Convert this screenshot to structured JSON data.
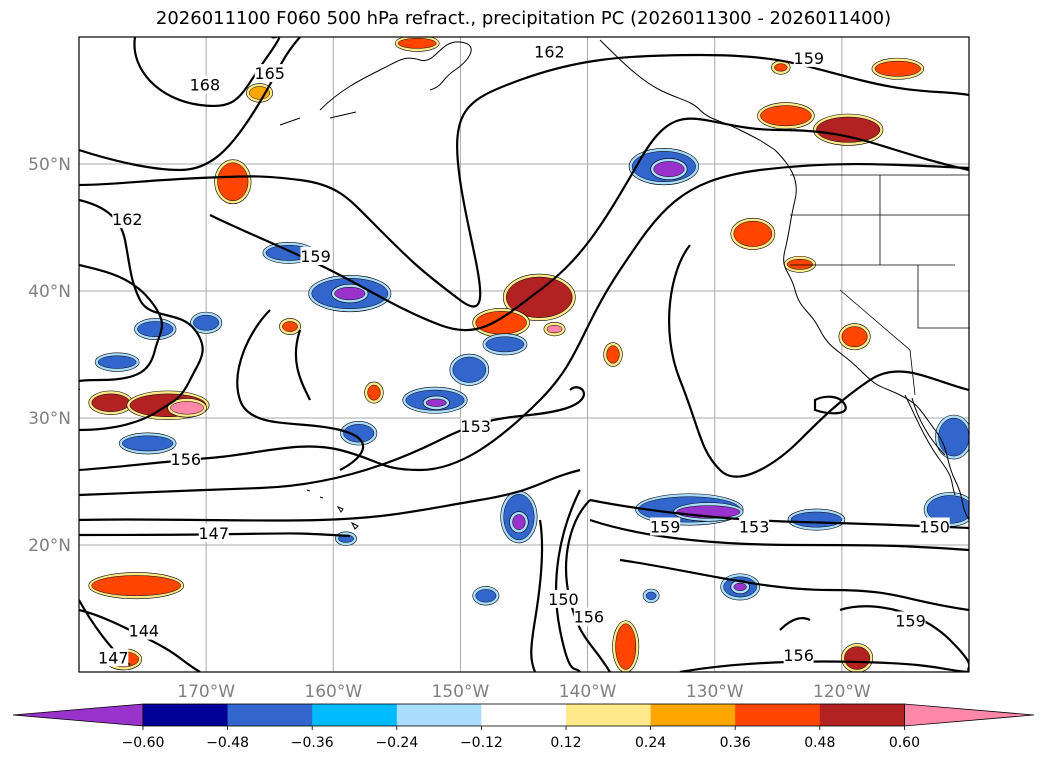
{
  "chart_data": {
    "type": "map-contour",
    "title": "2026011100 F060 500 hPa refract., precipitation PC (2026011300 - 2026011400)",
    "lon_range": [
      -180,
      -110
    ],
    "lat_range": [
      10,
      60
    ],
    "lon_ticks": [
      {
        "value": -170,
        "label": "170°W"
      },
      {
        "value": -160,
        "label": "160°W"
      },
      {
        "value": -150,
        "label": "150°W"
      },
      {
        "value": -140,
        "label": "140°W"
      },
      {
        "value": -130,
        "label": "130°W"
      },
      {
        "value": -120,
        "label": "120°W"
      }
    ],
    "lat_ticks": [
      {
        "value": 20,
        "label": "20°N"
      },
      {
        "value": 30,
        "label": "30°N"
      },
      {
        "value": 40,
        "label": "40°N"
      },
      {
        "value": 50,
        "label": "50°N"
      }
    ],
    "grid": true,
    "colorbar": {
      "orientation": "horizontal",
      "extend": "both",
      "levels": [
        -0.6,
        -0.48,
        -0.36,
        -0.24,
        -0.12,
        0.12,
        0.24,
        0.36,
        0.48,
        0.6
      ],
      "tick_labels": [
        "−0.60",
        "−0.48",
        "−0.36",
        "−0.24",
        "−0.12",
        "0.12",
        "0.24",
        "0.36",
        "0.48",
        "0.60"
      ],
      "colors": [
        "#9933cc",
        "#000099",
        "#3366cc",
        "#00bbff",
        "#aaddff",
        "#ffffff",
        "#ffe98a",
        "#ffa500",
        "#ff4500",
        "#b22222",
        "#ff88aa"
      ]
    },
    "contour_labels": [
      {
        "text": "168",
        "lon": -170.1,
        "lat": 56.1
      },
      {
        "text": "165",
        "lon": -165.0,
        "lat": 57.0
      },
      {
        "text": "162",
        "lon": -143.0,
        "lat": 58.7
      },
      {
        "text": "159",
        "lon": -122.6,
        "lat": 58.2
      },
      {
        "text": "162",
        "lon": -176.2,
        "lat": 45.5
      },
      {
        "text": "159",
        "lon": -161.4,
        "lat": 42.6
      },
      {
        "text": "153",
        "lon": -148.8,
        "lat": 29.2
      },
      {
        "text": "156",
        "lon": -171.6,
        "lat": 26.6
      },
      {
        "text": "147",
        "lon": -169.4,
        "lat": 20.8
      },
      {
        "text": "159",
        "lon": -133.9,
        "lat": 21.3
      },
      {
        "text": "153",
        "lon": -126.9,
        "lat": 21.3
      },
      {
        "text": "150",
        "lon": -112.7,
        "lat": 21.3
      },
      {
        "text": "150",
        "lon": -141.9,
        "lat": 15.6
      },
      {
        "text": "156",
        "lon": -139.9,
        "lat": 14.2
      },
      {
        "text": "159",
        "lon": -114.6,
        "lat": 13.9
      },
      {
        "text": "144",
        "lon": -174.9,
        "lat": 13.1
      },
      {
        "text": "147",
        "lon": -177.3,
        "lat": 11.0
      },
      {
        "text": "156",
        "lon": -123.4,
        "lat": 11.2
      }
    ],
    "precip_blobs": [
      {
        "lon": -177.5,
        "lat": 31.2,
        "rx": 1.5,
        "ry": 0.7,
        "level": 4
      },
      {
        "lon": -173.0,
        "lat": 31.0,
        "rx": 3.0,
        "ry": 0.9,
        "level": 4
      },
      {
        "lon": -171.5,
        "lat": 30.8,
        "rx": 1.3,
        "ry": 0.5,
        "level": 5
      },
      {
        "lon": -174.6,
        "lat": 28.0,
        "rx": 2.0,
        "ry": 0.6,
        "level": -3
      },
      {
        "lon": -175.5,
        "lat": 16.8,
        "rx": 3.5,
        "ry": 0.8,
        "level": 3
      },
      {
        "lon": -176.5,
        "lat": 11.0,
        "rx": 1.2,
        "ry": 0.6,
        "level": 3
      },
      {
        "lon": -167.9,
        "lat": 48.6,
        "rx": 1.2,
        "ry": 1.5,
        "level": 3
      },
      {
        "lon": -165.8,
        "lat": 55.6,
        "rx": 0.8,
        "ry": 0.5,
        "level": 2
      },
      {
        "lon": -158.7,
        "lat": 39.8,
        "rx": 3.0,
        "ry": 1.2,
        "level": -3
      },
      {
        "lon": -158.7,
        "lat": 39.8,
        "rx": 1.2,
        "ry": 0.5,
        "level": -5
      },
      {
        "lon": -163.5,
        "lat": 43.0,
        "rx": 1.8,
        "ry": 0.6,
        "level": -3
      },
      {
        "lon": -152.0,
        "lat": 31.4,
        "rx": 2.3,
        "ry": 0.8,
        "level": -3
      },
      {
        "lon": -151.9,
        "lat": 31.2,
        "rx": 0.8,
        "ry": 0.3,
        "level": -5
      },
      {
        "lon": -177.0,
        "lat": 34.4,
        "rx": 1.5,
        "ry": 0.5,
        "level": -3
      },
      {
        "lon": -174.0,
        "lat": 37.0,
        "rx": 1.4,
        "ry": 0.6,
        "level": -3
      },
      {
        "lon": -170.0,
        "lat": 37.5,
        "rx": 1.0,
        "ry": 0.6,
        "level": -3
      },
      {
        "lon": -158.0,
        "lat": 28.8,
        "rx": 1.2,
        "ry": 0.7,
        "level": -3
      },
      {
        "lon": -156.8,
        "lat": 32.0,
        "rx": 0.5,
        "ry": 0.6,
        "level": 3
      },
      {
        "lon": -163.4,
        "lat": 37.2,
        "rx": 0.6,
        "ry": 0.4,
        "level": 3
      },
      {
        "lon": -143.8,
        "lat": 39.5,
        "rx": 2.6,
        "ry": 1.6,
        "level": 4
      },
      {
        "lon": -146.8,
        "lat": 37.5,
        "rx": 2.0,
        "ry": 0.9,
        "level": 3
      },
      {
        "lon": -146.5,
        "lat": 35.8,
        "rx": 1.5,
        "ry": 0.6,
        "level": -3
      },
      {
        "lon": -149.3,
        "lat": 33.8,
        "rx": 1.3,
        "ry": 1.0,
        "level": -3
      },
      {
        "lon": -134.0,
        "lat": 49.8,
        "rx": 2.5,
        "ry": 1.2,
        "level": -3
      },
      {
        "lon": -133.6,
        "lat": 49.6,
        "rx": 1.2,
        "ry": 0.6,
        "level": -5
      },
      {
        "lon": -127.0,
        "lat": 44.5,
        "rx": 1.5,
        "ry": 1.0,
        "level": 3
      },
      {
        "lon": -123.3,
        "lat": 42.1,
        "rx": 1.0,
        "ry": 0.4,
        "level": 3
      },
      {
        "lon": -124.4,
        "lat": 53.8,
        "rx": 2.0,
        "ry": 0.8,
        "level": 3
      },
      {
        "lon": -119.5,
        "lat": 52.7,
        "rx": 2.5,
        "ry": 1.0,
        "level": 4
      },
      {
        "lon": -115.6,
        "lat": 57.5,
        "rx": 1.8,
        "ry": 0.6,
        "level": 3
      },
      {
        "lon": -119.0,
        "lat": 36.4,
        "rx": 1.0,
        "ry": 0.8,
        "level": 3
      },
      {
        "lon": -132.0,
        "lat": 22.8,
        "rx": 4.0,
        "ry": 1.0,
        "level": -3
      },
      {
        "lon": -130.5,
        "lat": 22.6,
        "rx": 2.5,
        "ry": 0.5,
        "level": -5
      },
      {
        "lon": -122.0,
        "lat": 22.0,
        "rx": 2.0,
        "ry": 0.6,
        "level": -3
      },
      {
        "lon": -111.5,
        "lat": 22.8,
        "rx": 1.8,
        "ry": 1.1,
        "level": -3
      },
      {
        "lon": -111.2,
        "lat": 28.5,
        "rx": 1.2,
        "ry": 1.5,
        "level": -3
      },
      {
        "lon": -145.4,
        "lat": 22.2,
        "rx": 1.2,
        "ry": 1.8,
        "level": -3
      },
      {
        "lon": -145.4,
        "lat": 21.8,
        "rx": 0.5,
        "ry": 0.6,
        "level": -5
      },
      {
        "lon": -128.0,
        "lat": 16.7,
        "rx": 1.3,
        "ry": 0.8,
        "level": -3
      },
      {
        "lon": -128.0,
        "lat": 16.7,
        "rx": 0.5,
        "ry": 0.3,
        "level": -6
      },
      {
        "lon": -137.0,
        "lat": 12.0,
        "rx": 0.8,
        "ry": 1.8,
        "level": 3
      },
      {
        "lon": -118.8,
        "lat": 11.1,
        "rx": 1.0,
        "ry": 0.9,
        "level": 4
      },
      {
        "lon": -124.8,
        "lat": 57.6,
        "rx": 0.5,
        "ry": 0.3,
        "level": 3
      },
      {
        "lon": -142.6,
        "lat": 37.0,
        "rx": 0.6,
        "ry": 0.3,
        "level": 5
      },
      {
        "lon": -153.4,
        "lat": 59.5,
        "rx": 1.5,
        "ry": 0.4,
        "level": 3
      },
      {
        "lon": -138.0,
        "lat": 35.0,
        "rx": 0.5,
        "ry": 0.7,
        "level": 3
      },
      {
        "lon": -135.0,
        "lat": 16.0,
        "rx": 0.4,
        "ry": 0.3,
        "level": -3
      },
      {
        "lon": -148.0,
        "lat": 16.0,
        "rx": 0.8,
        "ry": 0.5,
        "level": -3
      },
      {
        "lon": -159.0,
        "lat": 20.5,
        "rx": 0.6,
        "ry": 0.3,
        "level": -3
      }
    ]
  }
}
